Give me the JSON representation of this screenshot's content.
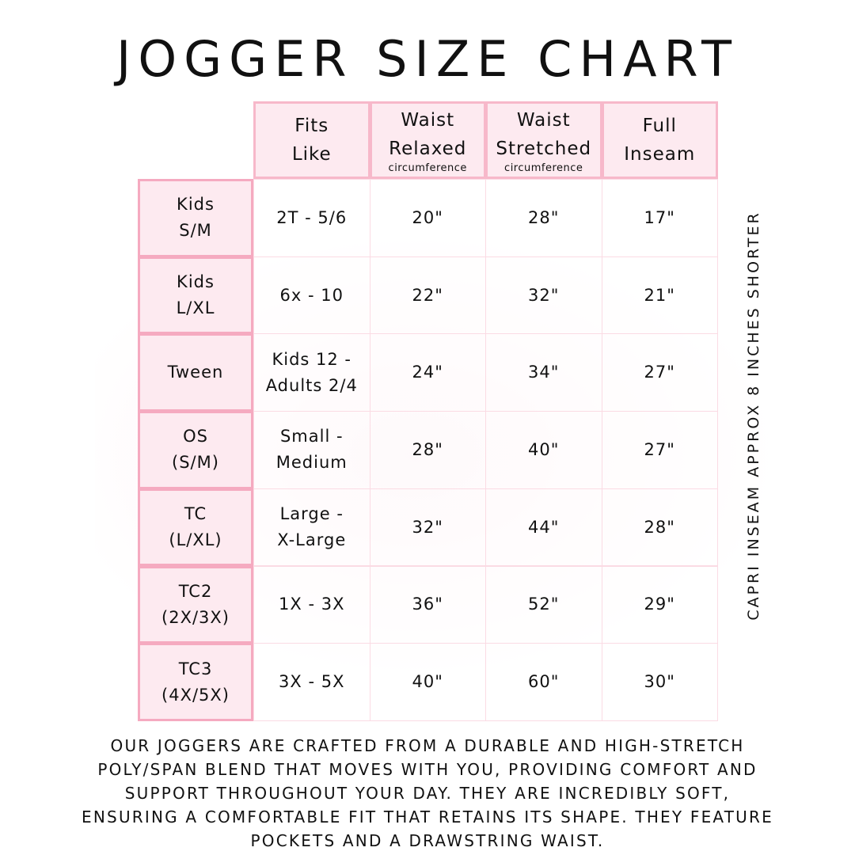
{
  "title": "JOGGER SIZE CHART",
  "columns": [
    {
      "line1": "Fits",
      "line2": "Like",
      "sub": ""
    },
    {
      "line1": "Waist",
      "line2": "Relaxed",
      "sub": "circumference"
    },
    {
      "line1": "Waist",
      "line2": "Stretched",
      "sub": "circumference"
    },
    {
      "line1": "Full",
      "line2": "Inseam",
      "sub": ""
    }
  ],
  "rows": [
    {
      "size": [
        "Kids",
        "S/M"
      ],
      "fits": [
        "2T - 5/6"
      ],
      "relaxed": "20\"",
      "stretched": "28\"",
      "inseam": "17\""
    },
    {
      "size": [
        "Kids",
        "L/XL"
      ],
      "fits": [
        "6x - 10"
      ],
      "relaxed": "22\"",
      "stretched": "32\"",
      "inseam": "21\""
    },
    {
      "size": [
        "Tween"
      ],
      "fits": [
        "Kids 12 -",
        "Adults 2/4"
      ],
      "relaxed": "24\"",
      "stretched": "34\"",
      "inseam": "27\""
    },
    {
      "size": [
        "OS",
        "(S/M)"
      ],
      "fits": [
        "Small -",
        "Medium"
      ],
      "relaxed": "28\"",
      "stretched": "40\"",
      "inseam": "27\""
    },
    {
      "size": [
        "TC",
        "(L/XL)"
      ],
      "fits": [
        "Large -",
        "X-Large"
      ],
      "relaxed": "32\"",
      "stretched": "44\"",
      "inseam": "28\""
    },
    {
      "size": [
        "TC2",
        "(2X/3X)"
      ],
      "fits": [
        "1X - 3X"
      ],
      "relaxed": "36\"",
      "stretched": "52\"",
      "inseam": "29\""
    },
    {
      "size": [
        "TC3",
        "(4X/5X)"
      ],
      "fits": [
        "3X - 5X"
      ],
      "relaxed": "40\"",
      "stretched": "60\"",
      "inseam": "30\""
    }
  ],
  "side_note": "CAPRI INSEAM APPROX 8 INCHES SHORTER",
  "description_lines": [
    "Our joggers are crafted from a durable and high-stretch",
    "poly/span blend that moves with you, providing comfort and",
    "support throughout your day. They are incredibly soft,",
    "ensuring a comfortable fit that retains its shape. They feature",
    "pockets and a drawstring waist."
  ],
  "colors": {
    "header_fill": "#fdeaf0",
    "border_pink": "#f5aac0",
    "text": "#111111"
  }
}
